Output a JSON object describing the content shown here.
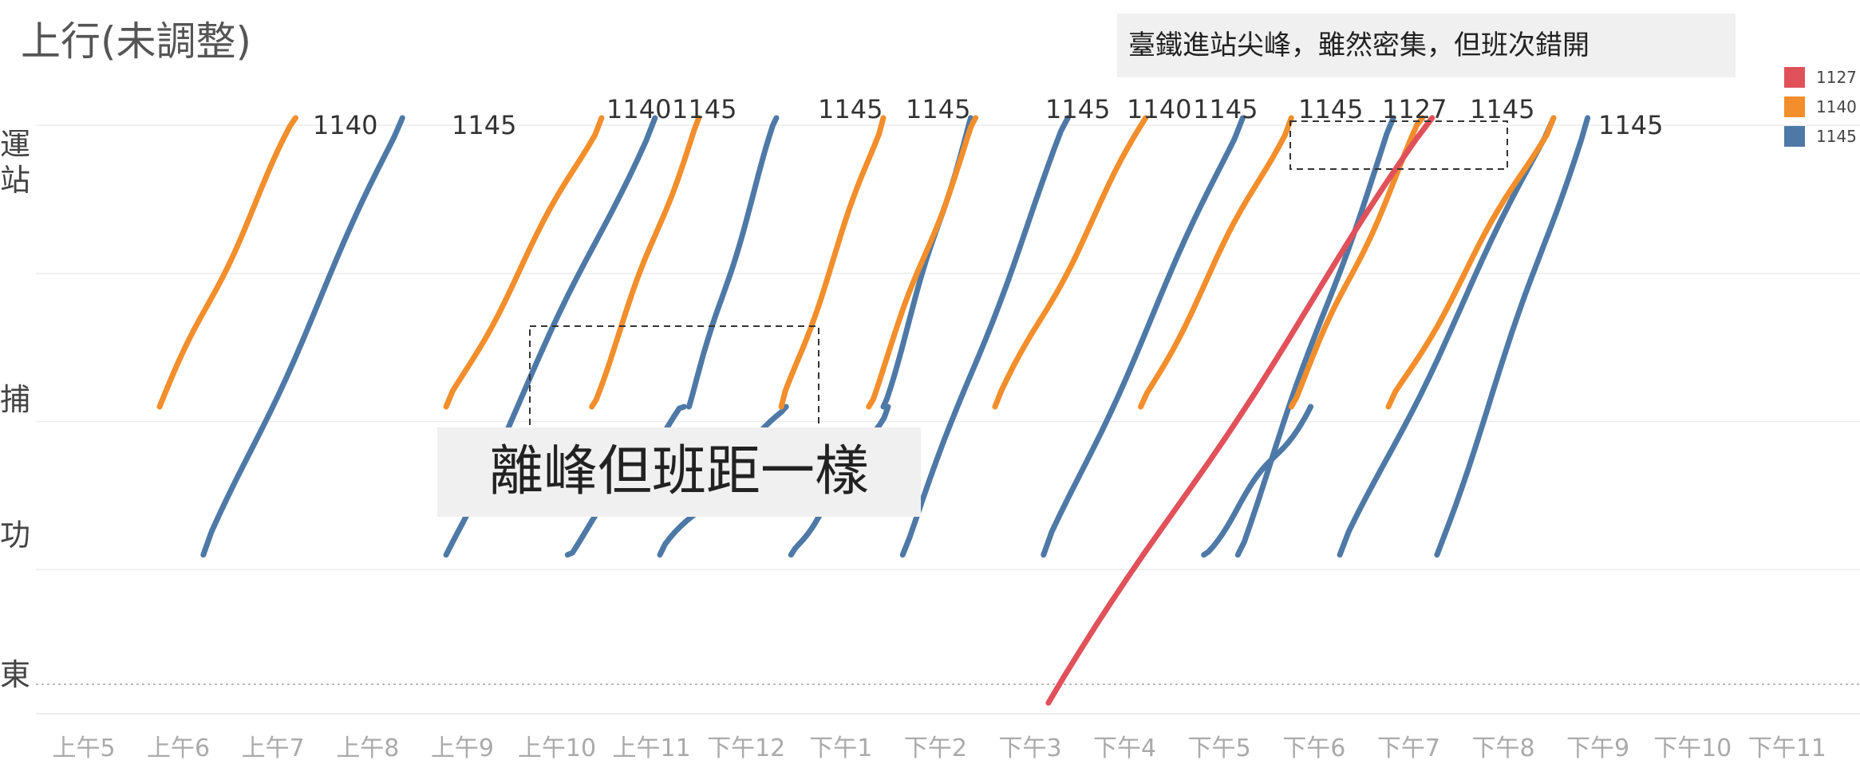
{
  "colors": {
    "1127": "#e0515a",
    "1140": "#f28e2b",
    "1145": "#4e79a7"
  },
  "notes": {
    "top": "臺鐵進站尖峰，雖然密集，但班次錯開",
    "middle": "離峰但班距一樣"
  },
  "legend": [
    {
      "label": "1127",
      "color": "#e0515a"
    },
    {
      "label": "1140",
      "color": "#f28e2b"
    },
    {
      "label": "1145",
      "color": "#4e79a7"
    }
  ],
  "chart_data": {
    "type": "line",
    "title": "上行(未調整)",
    "y_labels": [
      "運",
      "站",
      "捕",
      "功",
      "東"
    ],
    "x_ticks": [
      "上午5",
      "上午6",
      "上午7",
      "上午8",
      "上午9",
      "上午10",
      "上午11",
      "下午12",
      "下午1",
      "下午2",
      "下午3",
      "下午4",
      "下午5",
      "下午6",
      "下午7",
      "下午8",
      "下午9",
      "下午10",
      "下午11"
    ],
    "x_range": [
      5,
      23.4
    ],
    "y_range": [
      0,
      4.2
    ],
    "grid": true,
    "legend_position": "right-top",
    "series": [
      {
        "route": "1140",
        "t0": 6.15,
        "t1": 7.55,
        "y0": 2.1,
        "y1": 4.05,
        "label": "1140"
      },
      {
        "route": "1145",
        "t0": 6.6,
        "t1": 8.65,
        "y0": 1.1,
        "y1": 4.05,
        "label": "1145"
      },
      {
        "route": "1140",
        "t0": 9.1,
        "t1": 10.7,
        "y0": 2.1,
        "y1": 4.05
      },
      {
        "route": "1145",
        "t0": 9.1,
        "t1": 11.25,
        "y0": 1.1,
        "y1": 4.05
      },
      {
        "route": "1140",
        "t0": 10.6,
        "t1": 11.7,
        "y0": 2.1,
        "y1": 4.05,
        "label": "1140"
      },
      {
        "route": "1145",
        "t0": 10.35,
        "t1": 11.55,
        "y0": 1.1,
        "y1": 2.1
      },
      {
        "route": "1145",
        "t0": 11.6,
        "t1": 12.5,
        "y0": 2.1,
        "y1": 4.05,
        "label": "1145"
      },
      {
        "route": "1145",
        "t0": 11.3,
        "t1": 12.6,
        "y0": 1.1,
        "y1": 2.1
      },
      {
        "route": "1140",
        "t0": 12.55,
        "t1": 13.6,
        "y0": 2.1,
        "y1": 4.05
      },
      {
        "route": "1145",
        "t0": 12.65,
        "t1": 13.65,
        "y0": 1.1,
        "y1": 2.1
      },
      {
        "route": "1145",
        "t0": 13.6,
        "t1": 14.5,
        "y0": 2.1,
        "y1": 4.05,
        "label": "1145"
      },
      {
        "route": "1140",
        "t0": 13.45,
        "t1": 14.55,
        "y0": 2.1,
        "y1": 4.05
      },
      {
        "route": "1145",
        "t0": 13.8,
        "t1": 15.5,
        "y0": 1.1,
        "y1": 4.05,
        "label": "1145"
      },
      {
        "route": "1140",
        "t0": 14.75,
        "t1": 16.3,
        "y0": 2.1,
        "y1": 4.05
      },
      {
        "route": "1145",
        "t0": 15.25,
        "t1": 17.3,
        "y0": 1.1,
        "y1": 4.05,
        "label": "1145"
      },
      {
        "route": "1140",
        "t0": 16.25,
        "t1": 17.8,
        "y0": 2.1,
        "y1": 4.05,
        "label": "1140"
      },
      {
        "route": "1145",
        "t0": 16.9,
        "t1": 18.0,
        "y0": 1.1,
        "y1": 2.1
      },
      {
        "route": "1145",
        "t0": 17.25,
        "t1": 18.85,
        "y0": 1.1,
        "y1": 4.05,
        "label": "1145"
      },
      {
        "route": "1140",
        "t0": 17.8,
        "t1": 19.15,
        "y0": 2.1,
        "y1": 4.05
      },
      {
        "route": "1127",
        "t0": 15.3,
        "t1": 19.25,
        "y0": 0.1,
        "y1": 4.05,
        "label": "1127"
      },
      {
        "route": "1145",
        "t0": 18.3,
        "t1": 20.5,
        "y0": 1.1,
        "y1": 4.05,
        "label": "1145"
      },
      {
        "route": "1140",
        "t0": 18.8,
        "t1": 20.5,
        "y0": 2.1,
        "y1": 4.05
      },
      {
        "route": "1145",
        "t0": 19.3,
        "t1": 20.85,
        "y0": 1.1,
        "y1": 4.05,
        "label": "1145"
      }
    ],
    "annotations": [
      "1140",
      "1145",
      "1140 1145",
      "1145",
      "1145",
      "1145",
      "1140 1145",
      "1145",
      "1127",
      "1145",
      "1145"
    ]
  }
}
